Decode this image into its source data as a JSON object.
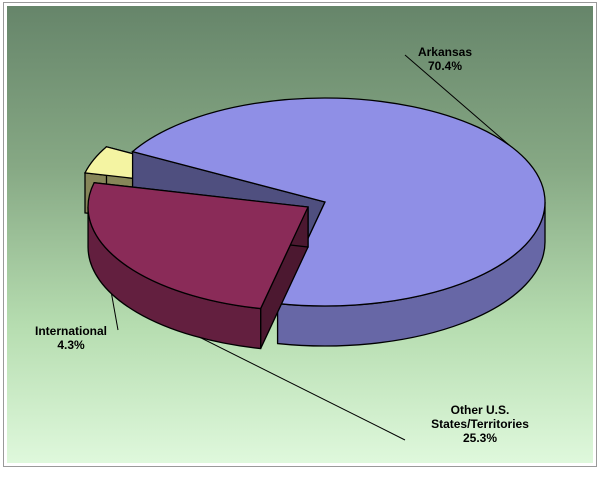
{
  "chart_data": {
    "type": "pie",
    "title": "",
    "slices": [
      {
        "label": "Arkansas",
        "value": 70.4,
        "value_label": "70.4%",
        "color": "#8f8fe6"
      },
      {
        "label": "Other U.S. States/Territories",
        "label_lines": [
          "Other U.S.",
          "States/Territories"
        ],
        "value": 25.3,
        "value_label": "25.3%",
        "color": "#8a2b58"
      },
      {
        "label": "International",
        "value": 4.3,
        "value_label": "4.3%",
        "color": "#f4f4a2"
      }
    ],
    "style": "3d-exploded",
    "legend": "none"
  }
}
